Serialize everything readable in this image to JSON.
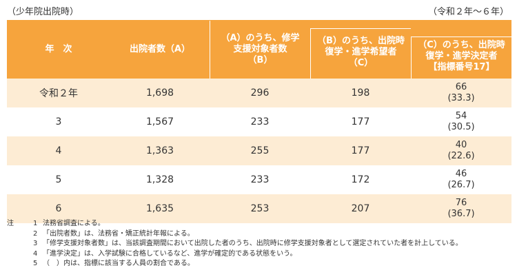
{
  "caption_left": "（少年院出院時）",
  "caption_right": "（令和２年～６年）",
  "headers": {
    "year": [
      "年　次"
    ],
    "released": [
      "出院者数（A）"
    ],
    "support": [
      "（A）のうち、修学",
      "支援対象者数",
      "（B）"
    ],
    "wish": [
      "（B）のうち、出院時",
      "復学・進学希望者",
      "（C）"
    ],
    "decided": [
      "（C）のうち、出院時",
      "復学・進学決定者",
      "【指標番号17】"
    ]
  },
  "rows": [
    {
      "year": "令和２年",
      "released": "1,698",
      "support": "296",
      "wish": "198",
      "decided": "66",
      "ratio": "(33.3)"
    },
    {
      "year": "3",
      "released": "1,567",
      "support": "233",
      "wish": "177",
      "decided": "54",
      "ratio": "(30.5)"
    },
    {
      "year": "4",
      "released": "1,363",
      "support": "255",
      "wish": "177",
      "decided": "40",
      "ratio": "(22.6)"
    },
    {
      "year": "5",
      "released": "1,328",
      "support": "233",
      "wish": "172",
      "decided": "46",
      "ratio": "(26.7)"
    },
    {
      "year": "6",
      "released": "1,635",
      "support": "253",
      "wish": "207",
      "decided": "76",
      "ratio": "(36.7)"
    }
  ],
  "notes": {
    "prefix": "注",
    "items": [
      {
        "n": "1",
        "text": "法務省調査による。"
      },
      {
        "n": "2",
        "text": "「出院者数」は、法務省・矯正統計年報による。"
      },
      {
        "n": "3",
        "text": "「修学支援対象者数」は、当該調査期間において出院した者のうち、出院時に修学支援対象者として選定されていた者を計上している。"
      },
      {
        "n": "4",
        "text": "「進学決定」は、入学試験に合格しているなど、進学が確定的である状態をいう。"
      },
      {
        "n": "5",
        "text": "（　）内は、指標に該当する人員の割合である。"
      }
    ]
  },
  "colors": {
    "header_bg": "#f6a43d",
    "stripe_bg": "#fdecd4",
    "text": "#333333"
  }
}
